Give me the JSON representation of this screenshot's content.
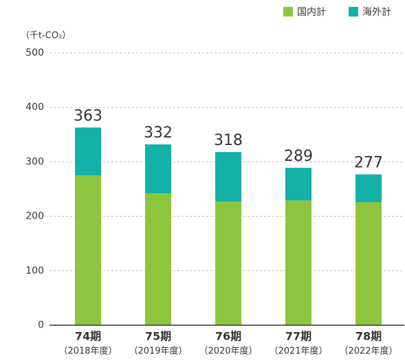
{
  "chart_data": {
    "type": "stacked_bar",
    "y_axis_label": "（千t-CO₂）",
    "categories": [
      "74期",
      "75期",
      "76期",
      "77期",
      "78期"
    ],
    "fiscal_years": [
      "（2018年度）",
      "（2019年度）",
      "（2020年度）",
      "（2021年度）",
      "（2022年度）"
    ],
    "series": [
      {
        "name": "国内計",
        "color": "#8cc63f",
        "values": [
          275,
          242,
          227,
          229,
          226
        ]
      },
      {
        "name": "海外計",
        "color": "#13b1a8",
        "values": [
          88,
          90,
          91,
          60,
          51
        ]
      }
    ],
    "totals": [
      363,
      332,
      318,
      289,
      277
    ],
    "ylim": [
      0,
      500
    ],
    "yticks": [
      0,
      100,
      200,
      300,
      400,
      500
    ],
    "grid": true,
    "legend": "top-right"
  }
}
